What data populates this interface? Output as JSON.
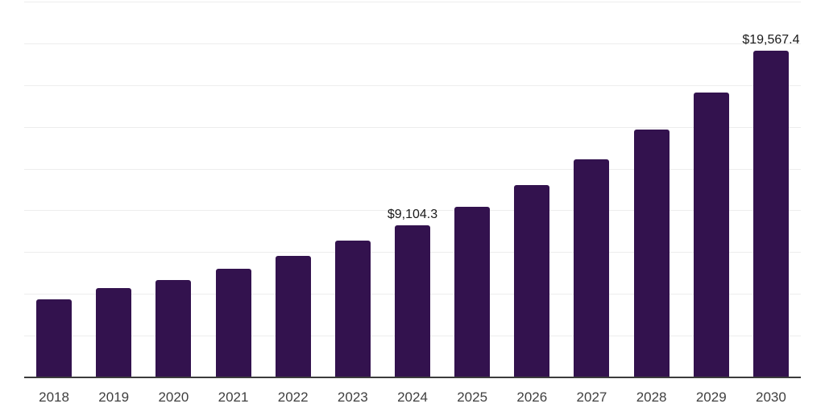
{
  "chart_data": {
    "type": "bar",
    "title": "",
    "xlabel": "",
    "ylabel": "",
    "categories": [
      "2018",
      "2019",
      "2020",
      "2021",
      "2022",
      "2023",
      "2024",
      "2025",
      "2026",
      "2027",
      "2028",
      "2029",
      "2030"
    ],
    "values": [
      4690,
      5330,
      5840,
      6490,
      7290,
      8170,
      9104.3,
      10220,
      11510,
      13080,
      14840,
      17050,
      19567.4
    ],
    "ylim": [
      0,
      22500
    ],
    "gridline_step": 2500,
    "grid": true,
    "legend_position": "none",
    "y_axis_labels_visible": false,
    "data_labels": [
      {
        "category": "2024",
        "text": "$9,104.3"
      },
      {
        "category": "2030",
        "text": "$19,567.4"
      }
    ],
    "colors": {
      "bar": "#33124e",
      "gridline": "#ededed",
      "axis_line": "#3c3c3c",
      "tick_label": "#404040",
      "data_label": "#1a1a1a",
      "background": "#ffffff"
    }
  }
}
